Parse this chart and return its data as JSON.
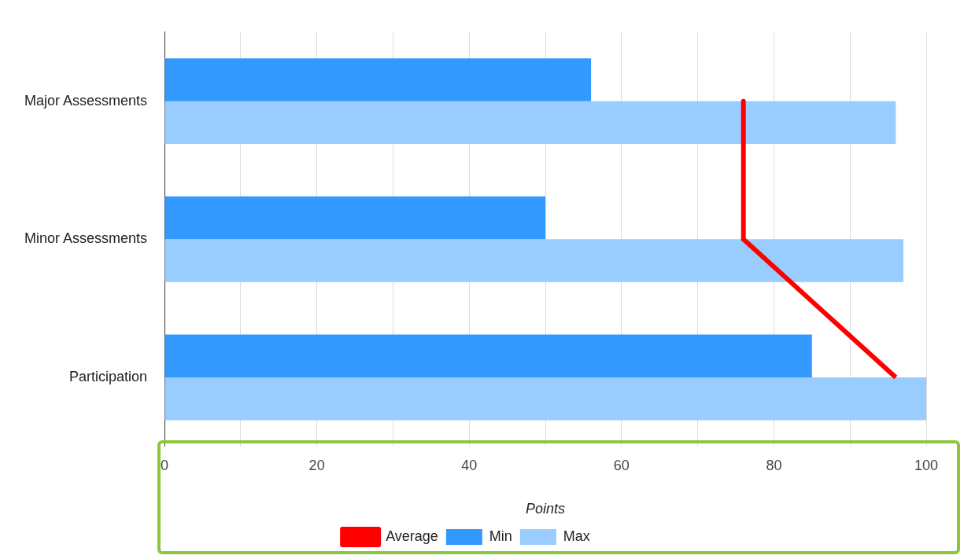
{
  "chart_data": {
    "type": "bar",
    "orientation": "horizontal",
    "xlabel": "Points",
    "categories": [
      "Major Assessments",
      "Minor Assessments",
      "Participation"
    ],
    "series": [
      {
        "name": "Min",
        "color": "#3399ff",
        "values": [
          56,
          50,
          85
        ]
      },
      {
        "name": "Max",
        "color": "#99ccff",
        "values": [
          96,
          97,
          100
        ]
      },
      {
        "name": "Average",
        "type": "line",
        "color": "#ff0000",
        "values": [
          76,
          76,
          96
        ]
      }
    ],
    "xlim": [
      0,
      100
    ],
    "xticks": [
      0,
      {
        "value": 10,
        "label": null
      },
      20,
      {
        "value": 30,
        "label": null
      },
      40,
      {
        "value": 50,
        "label": null
      },
      60,
      {
        "value": 70,
        "label": null
      },
      80,
      {
        "value": 90,
        "label": null
      },
      100
    ],
    "grid": "x",
    "legend": "bottom",
    "marker": "none"
  }
}
